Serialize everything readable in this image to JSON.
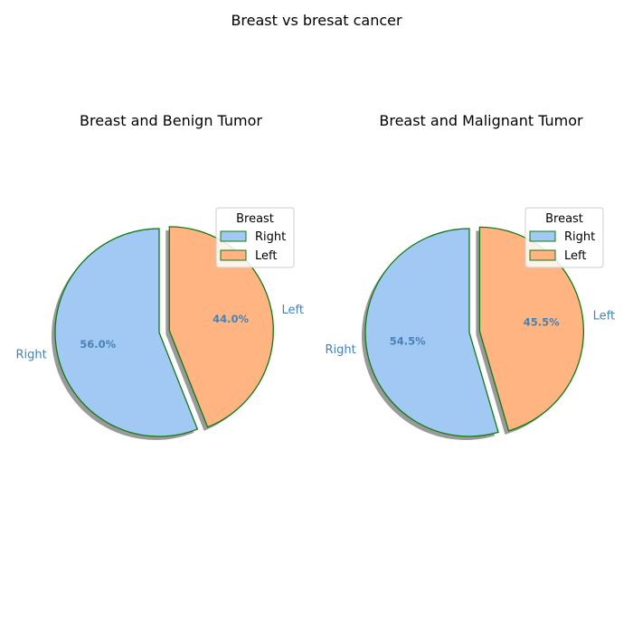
{
  "figure": {
    "suptitle": "Breast vs bresat cancer"
  },
  "style": {
    "edge_color": "#117a11",
    "label_color": "#4682b4",
    "pct_color": "#4682b4",
    "shadow_color": "#888888",
    "legend_edge": "#cccccc"
  },
  "chart_data": [
    {
      "type": "pie",
      "title": "Breast and Benign Tumor",
      "labels": [
        "Right",
        "Left"
      ],
      "values": [
        56.0,
        44.0
      ],
      "colors": [
        "#a1c9f4",
        "#ffb482"
      ],
      "explode": [
        0,
        0.1
      ],
      "start_angle_deg": 90,
      "shadow": true,
      "legend": {
        "title": "Breast",
        "entries": [
          "Right",
          "Left"
        ],
        "placement": "upper-right"
      }
    },
    {
      "type": "pie",
      "title": "Breast and Malignant Tumor",
      "labels": [
        "Right",
        "Left"
      ],
      "values": [
        54.5,
        45.5
      ],
      "colors": [
        "#a1c9f4",
        "#ffb482"
      ],
      "explode": [
        0,
        0.1
      ],
      "start_angle_deg": 90,
      "shadow": true,
      "legend": {
        "title": "Breast",
        "entries": [
          "Right",
          "Left"
        ],
        "placement": "upper-right"
      }
    }
  ]
}
